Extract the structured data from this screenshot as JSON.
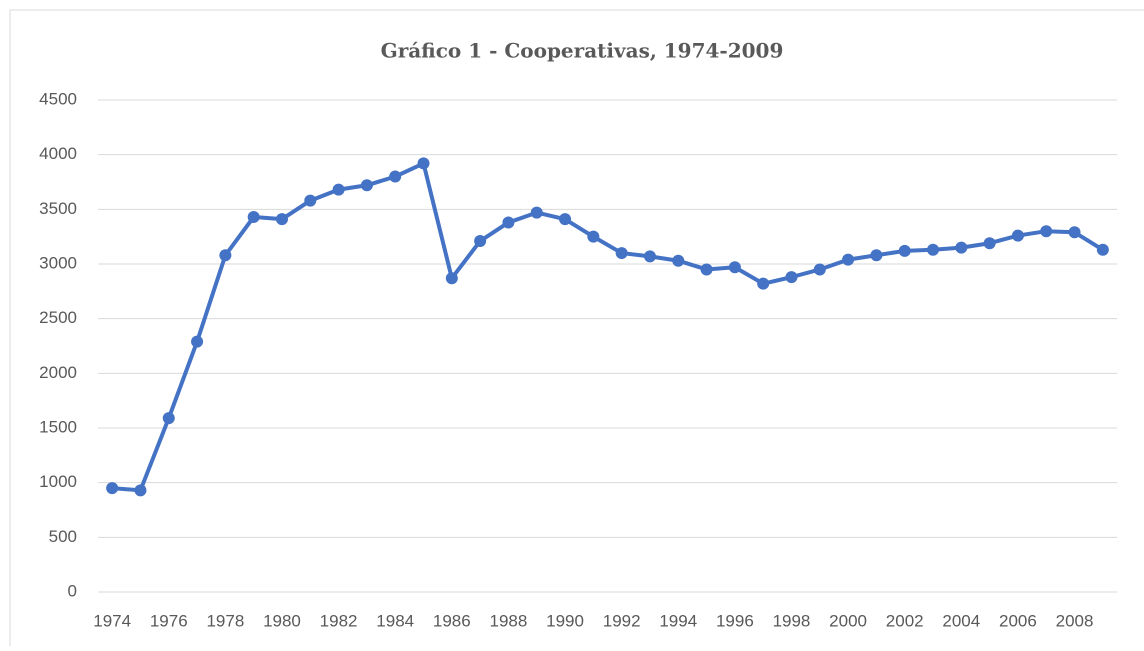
{
  "chart_data": {
    "type": "line",
    "title": "Gráfico 1 - Cooperativas, 1974-2009",
    "categories": [
      "1974",
      null,
      "1976",
      null,
      "1978",
      null,
      "1980",
      null,
      "1982",
      null,
      "1984",
      null,
      "1986",
      null,
      "1988",
      null,
      "1990",
      null,
      "1992",
      null,
      "1994",
      null,
      "1996",
      null,
      "1998",
      null,
      "2000",
      null,
      "2002",
      null,
      "2004",
      null,
      "2006",
      null,
      "2008",
      null
    ],
    "series": [
      {
        "color": "#4472c4",
        "values": [
          950,
          930,
          1590,
          2290,
          3080,
          3430,
          3410,
          3580,
          3680,
          3720,
          3800,
          3920,
          2870,
          3210,
          3380,
          3470,
          3410,
          3250,
          3100,
          3070,
          3030,
          2950,
          2970,
          2820,
          2880,
          2950,
          3040,
          3080,
          3120,
          3130,
          3150,
          3190,
          3260,
          3300,
          3290,
          3130
        ]
      }
    ],
    "ylim": [
      0,
      4500
    ],
    "yticks": [
      0,
      500,
      1000,
      1500,
      2000,
      2500,
      3000,
      3500,
      4000,
      4500
    ],
    "grid": true
  }
}
